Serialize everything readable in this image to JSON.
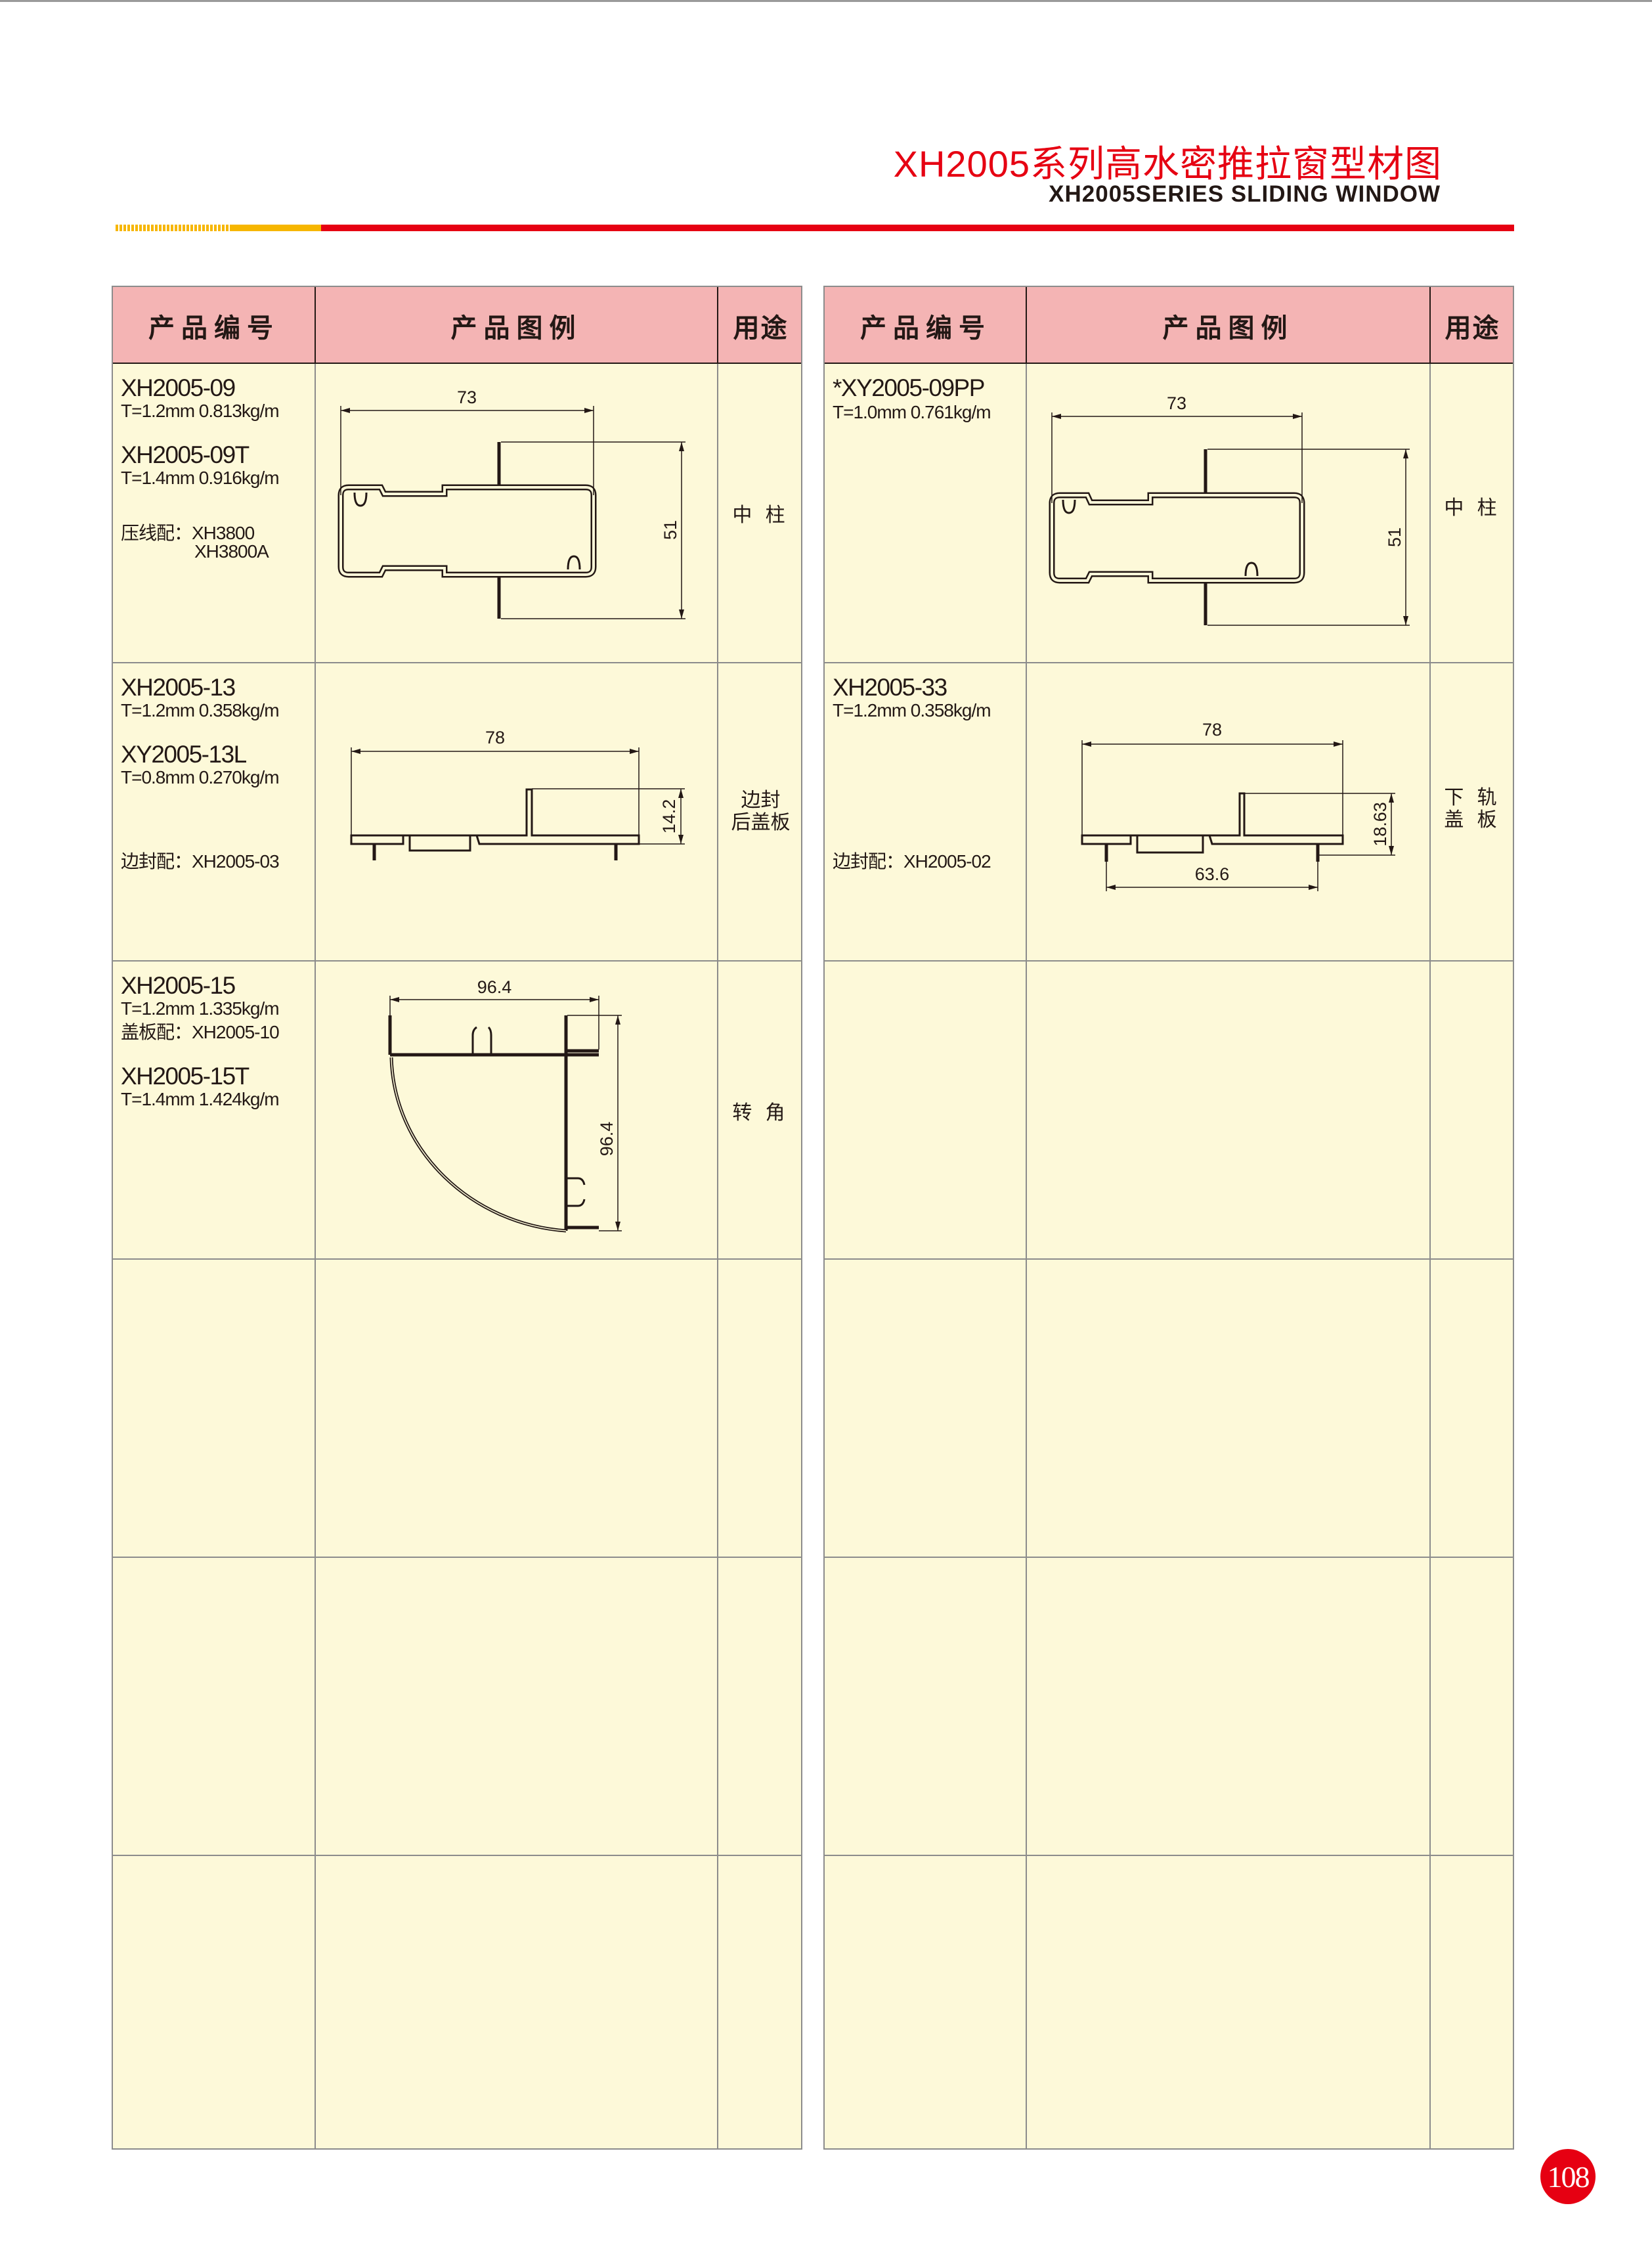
{
  "header": {
    "title": "XH2005系列高水密推拉窗型材图",
    "subtitle": "XH2005SERIES SLIDING WINDOW"
  },
  "colors": {
    "brand_red": "#e60012",
    "accent_yellow": "#f6b600",
    "header_pink": "#f4b4b4",
    "cell_bg": "#fdf9d9"
  },
  "columns": {
    "code": "产品编号",
    "drawing": "产品图例",
    "usage": "用途"
  },
  "left": {
    "rows": [
      {
        "name1": "XH2005-09",
        "spec1": "T=1.2mm  0.813kg/m",
        "name2": "XH2005-09T",
        "spec2": "T=1.4mm  0.916kg/m",
        "note": "压线配：XH3800",
        "note2": "XH3800A",
        "dim_w": "73",
        "dim_h": "51",
        "usage": "中 柱"
      },
      {
        "name1": "XH2005-13",
        "spec1": "T=1.2mm  0.358kg/m",
        "name2": "XY2005-13L",
        "spec2": "T=0.8mm  0.270kg/m",
        "note": "边封配：XH2005-03",
        "dim_w": "78",
        "dim_h": "14.2",
        "usage1": "边封",
        "usage2": "后盖板"
      },
      {
        "name1": "XH2005-15",
        "spec1": "T=1.2mm  1.335kg/m",
        "note": "盖板配：XH2005-10",
        "name2": "XH2005-15T",
        "spec2": "T=1.4mm  1.424kg/m",
        "dim_w": "96.4",
        "dim_h": "96.4",
        "usage": "转 角"
      }
    ]
  },
  "right": {
    "rows": [
      {
        "name1": "*XY2005-09PP",
        "spec1": "T=1.0mm  0.761kg/m",
        "dim_w": "73",
        "dim_h": "51",
        "usage": "中 柱"
      },
      {
        "name1": "XH2005-33",
        "spec1": "T=1.2mm  0.358kg/m",
        "note": "边封配：XH2005-02",
        "dim_w": "78",
        "dim_h": "18.63",
        "dim_w2": "63.6",
        "usage1": "下 轨",
        "usage2": "盖 板"
      }
    ]
  },
  "page_number": "108"
}
